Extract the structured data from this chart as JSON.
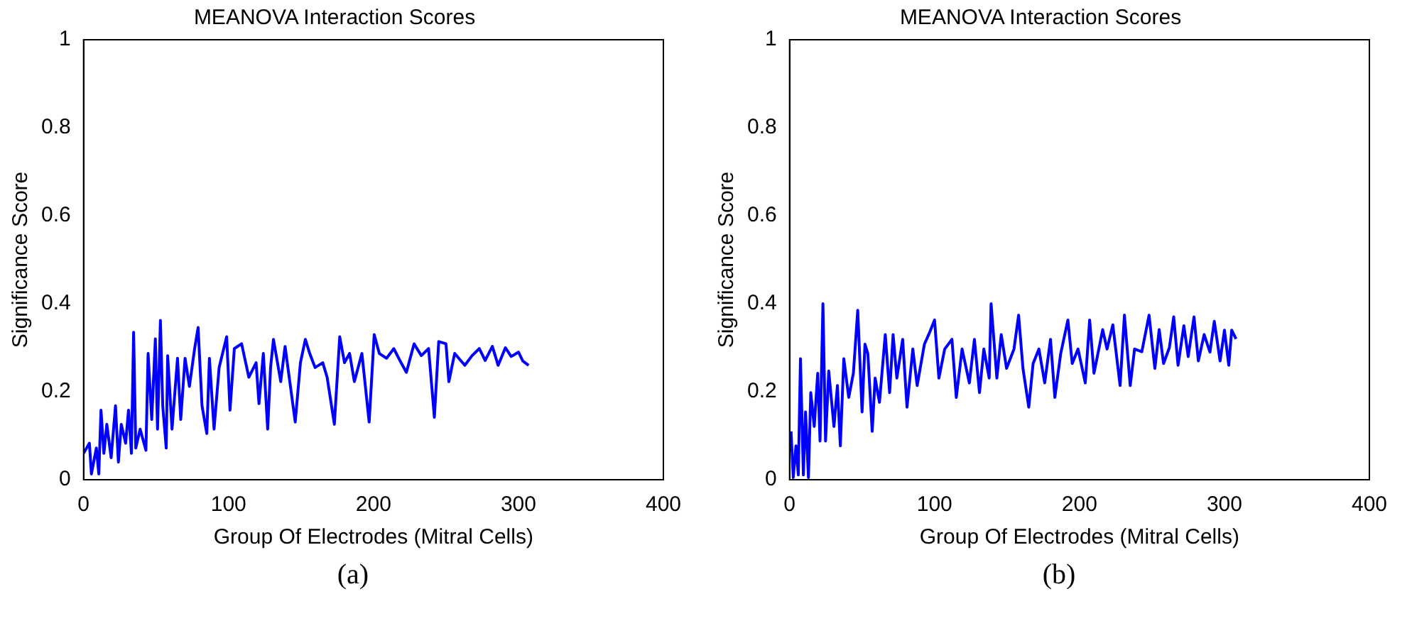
{
  "chart_data": [
    {
      "type": "line",
      "title": "MEANOVA Interaction Scores",
      "xlabel": "Group Of Electrodes (Mitral Cells)",
      "ylabel": "Significance Score",
      "xlim": [
        0,
        400
      ],
      "xticks": [
        0,
        100,
        200,
        300,
        400
      ],
      "ylim": [
        0,
        1
      ],
      "yticks": [
        0,
        0.2,
        0.4,
        0.6,
        0.8,
        1
      ],
      "grid": false,
      "legend": false,
      "marker": "none",
      "line_style": "solid",
      "annotations": [
        "(a)"
      ],
      "series": [
        {
          "color": "#0000ff",
          "x": [
            0,
            4,
            5.4,
            8.8,
            10.5,
            12,
            14,
            16,
            19,
            22,
            24,
            26,
            29,
            31,
            33,
            34.5,
            36,
            39,
            43,
            44.5,
            47,
            49.5,
            51,
            53,
            54.6,
            57,
            58,
            61,
            64.8,
            67,
            70,
            73,
            76.6,
            79,
            81.7,
            85,
            86.8,
            90,
            93.5,
            98.7,
            101,
            104,
            109,
            114,
            119,
            121,
            124,
            127,
            129,
            131,
            136,
            139,
            142.7,
            146,
            149.6,
            153,
            156,
            159.7,
            165,
            168,
            173,
            176.7,
            180,
            183.5,
            186.8,
            192,
            197,
            200.5,
            204,
            209,
            214,
            219,
            222.7,
            228,
            233,
            238,
            242,
            245,
            250,
            252,
            256,
            263,
            268,
            273,
            277,
            282,
            286,
            291,
            295,
            300,
            303,
            307
          ],
          "values": [
            0.06,
            0.083,
            0.013,
            0.072,
            0.013,
            0.158,
            0.06,
            0.126,
            0.05,
            0.168,
            0.04,
            0.126,
            0.083,
            0.158,
            0.06,
            0.335,
            0.072,
            0.115,
            0.067,
            0.287,
            0.137,
            0.32,
            0.115,
            0.362,
            0.168,
            0.072,
            0.282,
            0.115,
            0.276,
            0.137,
            0.276,
            0.212,
            0.298,
            0.346,
            0.168,
            0.105,
            0.276,
            0.115,
            0.255,
            0.325,
            0.158,
            0.298,
            0.309,
            0.233,
            0.266,
            0.173,
            0.287,
            0.115,
            0.255,
            0.319,
            0.223,
            0.303,
            0.212,
            0.131,
            0.266,
            0.319,
            0.287,
            0.255,
            0.266,
            0.233,
            0.126,
            0.325,
            0.266,
            0.287,
            0.223,
            0.287,
            0.131,
            0.33,
            0.287,
            0.276,
            0.298,
            0.266,
            0.244,
            0.309,
            0.282,
            0.298,
            0.142,
            0.314,
            0.309,
            0.223,
            0.287,
            0.26,
            0.282,
            0.298,
            0.271,
            0.303,
            0.26,
            0.3,
            0.28,
            0.29,
            0.27,
            0.26
          ]
        }
      ]
    },
    {
      "type": "line",
      "title": "MEANOVA Interaction Scores",
      "xlabel": "Group Of Electrodes (Mitral Cells)",
      "ylabel": "Significance Score",
      "xlim": [
        0,
        400
      ],
      "xticks": [
        0,
        100,
        200,
        300,
        400
      ],
      "ylim": [
        0,
        1
      ],
      "yticks": [
        0,
        0.2,
        0.4,
        0.6,
        0.8,
        1
      ],
      "grid": false,
      "legend": false,
      "marker": "none",
      "line_style": "solid",
      "annotations": [
        "(b)"
      ],
      "series": [
        {
          "color": "#0000ff",
          "x": [
            1,
            2.5,
            4.4,
            6,
            7.5,
            9.5,
            11,
            13,
            14.6,
            17,
            19.4,
            21,
            23,
            24.8,
            27,
            30.6,
            33,
            35,
            37.4,
            40.8,
            44,
            47,
            50,
            52,
            54,
            57,
            59,
            62,
            66,
            69,
            71.4,
            74,
            78,
            81,
            85,
            88,
            93,
            96,
            100,
            103,
            107,
            112,
            115,
            119,
            124,
            127.5,
            131,
            134,
            137.7,
            139,
            143,
            146,
            149.7,
            154.8,
            158,
            161,
            165,
            168,
            172,
            176,
            180,
            183,
            187,
            192,
            195,
            199,
            204,
            207,
            210,
            216,
            219,
            223,
            228,
            231,
            235,
            238,
            243,
            248,
            252,
            255,
            258,
            262,
            265,
            268,
            272,
            275,
            279,
            282,
            286,
            290,
            293,
            297,
            300,
            303,
            305,
            308
          ],
          "values": [
            0.11,
            0.005,
            0.077,
            0.011,
            0.275,
            0.011,
            0.154,
            0.005,
            0.198,
            0.121,
            0.242,
            0.088,
            0.4,
            0.088,
            0.247,
            0.121,
            0.214,
            0.077,
            0.275,
            0.187,
            0.242,
            0.385,
            0.154,
            0.308,
            0.286,
            0.11,
            0.231,
            0.176,
            0.33,
            0.198,
            0.33,
            0.231,
            0.319,
            0.165,
            0.297,
            0.214,
            0.308,
            0.33,
            0.363,
            0.231,
            0.297,
            0.319,
            0.187,
            0.297,
            0.22,
            0.319,
            0.198,
            0.297,
            0.231,
            0.4,
            0.231,
            0.33,
            0.253,
            0.297,
            0.374,
            0.253,
            0.165,
            0.264,
            0.297,
            0.22,
            0.319,
            0.187,
            0.286,
            0.363,
            0.264,
            0.297,
            0.22,
            0.363,
            0.242,
            0.341,
            0.297,
            0.352,
            0.214,
            0.374,
            0.214,
            0.297,
            0.291,
            0.374,
            0.253,
            0.341,
            0.264,
            0.3,
            0.37,
            0.26,
            0.35,
            0.28,
            0.37,
            0.27,
            0.33,
            0.29,
            0.36,
            0.27,
            0.34,
            0.26,
            0.34,
            0.32
          ]
        }
      ]
    }
  ]
}
